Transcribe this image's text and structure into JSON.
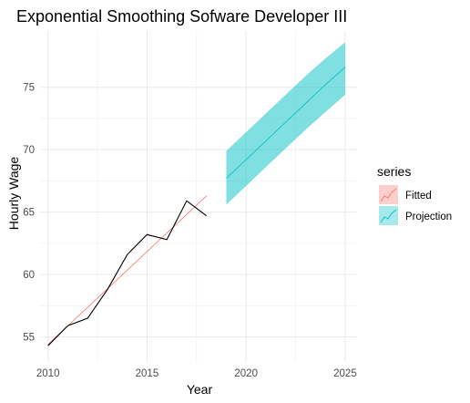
{
  "chart_data": {
    "type": "line",
    "title": "Exponential Smoothing Sofware Developer III",
    "xlabel": "Year",
    "ylabel": "Hourly Wage",
    "xlim": [
      2009.6,
      2025.6
    ],
    "ylim": [
      53.0,
      79.5
    ],
    "x_ticks": [
      2010,
      2015,
      2020,
      2025
    ],
    "x_tick_labels": [
      "2010",
      "2015",
      "2020",
      "2025"
    ],
    "y_ticks": [
      55,
      60,
      65,
      70,
      75
    ],
    "y_tick_labels": [
      "55",
      "60",
      "65",
      "70",
      "75"
    ],
    "grid": true,
    "legend_position": "right",
    "legend_title": "series",
    "observed": {
      "x": [
        2010,
        2011,
        2012,
        2013,
        2014,
        2015,
        2016,
        2017,
        2018
      ],
      "values": [
        54.3,
        55.9,
        56.5,
        58.8,
        61.6,
        63.2,
        62.8,
        65.9,
        64.7
      ],
      "color": "#000000"
    },
    "series": [
      {
        "name": "Fitted",
        "x": [
          2010,
          2018
        ],
        "values": [
          54.4,
          66.3
        ],
        "color": "#F8766D",
        "fill": "#F8766D"
      },
      {
        "name": "Projection",
        "x": [
          2019,
          2020,
          2021,
          2022,
          2023,
          2024,
          2025
        ],
        "values": [
          67.7,
          69.2,
          70.7,
          72.2,
          73.7,
          75.2,
          76.6
        ],
        "lower": [
          65.6,
          67.1,
          68.6,
          70.1,
          71.6,
          73.0,
          74.4
        ],
        "upper": [
          69.9,
          71.4,
          72.9,
          74.4,
          75.9,
          77.3,
          78.6
        ],
        "color": "#00BFC4",
        "fill": "#00BFC4"
      }
    ]
  }
}
